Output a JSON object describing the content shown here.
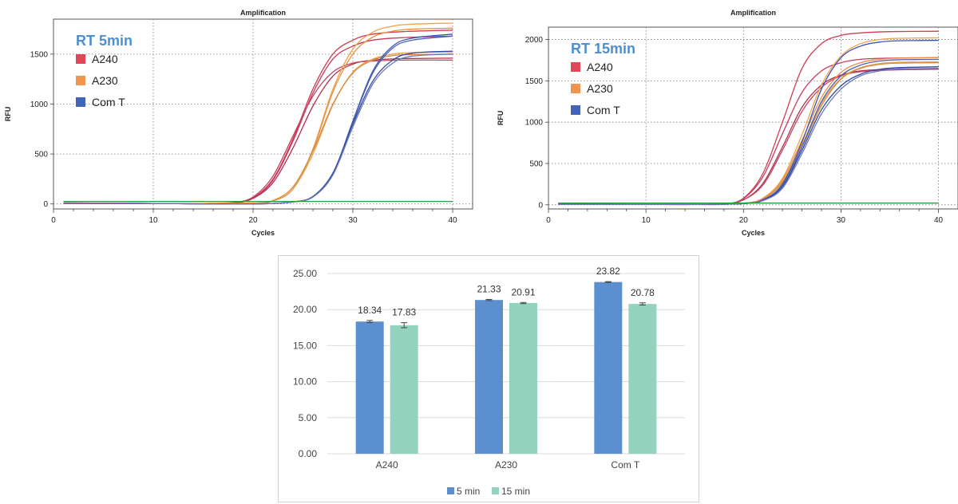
{
  "chart_data": [
    {
      "type": "line",
      "title": "Amplification",
      "annotation": "RT 5min",
      "xlabel": "Cycles",
      "ylabel": "RFU",
      "xlim": [
        0,
        42
      ],
      "ylim": [
        -50,
        1850
      ],
      "xticks": [
        0,
        10,
        20,
        30,
        40
      ],
      "yticks": [
        0,
        500,
        1000,
        1500
      ],
      "grid": true,
      "legend_position": "top-left",
      "legend": [
        {
          "label": "A240",
          "color": "#e04858"
        },
        {
          "label": "A230",
          "color": "#f0954e"
        },
        {
          "label": "Com T",
          "color": "#4464b8"
        }
      ],
      "series": [
        {
          "group": "A240",
          "color": "#d03c50",
          "ct": 24.6,
          "plateau": 1740,
          "x": [
            1,
            5,
            10,
            15,
            18,
            20,
            22,
            24,
            26,
            28,
            30,
            32,
            35,
            40
          ],
          "y": [
            10,
            8,
            5,
            5,
            10,
            60,
            250,
            650,
            1150,
            1500,
            1640,
            1700,
            1725,
            1740
          ]
        },
        {
          "group": "A240",
          "color": "#c83a5c",
          "ct": 24.4,
          "plateau": 1680,
          "x": [
            1,
            5,
            10,
            15,
            18,
            20,
            22,
            24,
            26,
            28,
            30,
            32,
            35,
            40
          ],
          "y": [
            10,
            8,
            5,
            5,
            10,
            60,
            240,
            630,
            1110,
            1450,
            1580,
            1640,
            1665,
            1680
          ]
        },
        {
          "group": "A240",
          "color": "#b03050",
          "ct": 24.2,
          "plateau": 1460,
          "x": [
            1,
            5,
            10,
            15,
            18,
            20,
            22,
            24,
            26,
            28,
            30,
            32,
            35,
            40
          ],
          "y": [
            10,
            8,
            5,
            5,
            10,
            55,
            215,
            560,
            980,
            1280,
            1400,
            1440,
            1455,
            1460
          ]
        },
        {
          "group": "A240",
          "color": "#c04560",
          "ct": 23.8,
          "plateau": 1440,
          "x": [
            1,
            5,
            10,
            15,
            18,
            20,
            22,
            24,
            26,
            28,
            30,
            32,
            35,
            40
          ],
          "y": [
            10,
            8,
            5,
            5,
            15,
            70,
            280,
            680,
            1080,
            1320,
            1410,
            1430,
            1440,
            1440
          ]
        },
        {
          "group": "A230",
          "color": "#f0a050",
          "ct": 27.3,
          "plateau": 1810,
          "x": [
            1,
            5,
            10,
            15,
            20,
            22,
            24,
            26,
            28,
            30,
            32,
            34,
            36,
            40
          ],
          "y": [
            5,
            5,
            5,
            5,
            8,
            30,
            150,
            550,
            1150,
            1550,
            1720,
            1780,
            1800,
            1810
          ]
        },
        {
          "group": "A230",
          "color": "#e89040",
          "ct": 27.2,
          "plateau": 1760,
          "x": [
            1,
            5,
            10,
            15,
            20,
            22,
            24,
            26,
            28,
            30,
            32,
            34,
            36,
            40
          ],
          "y": [
            5,
            5,
            5,
            5,
            8,
            30,
            150,
            540,
            1120,
            1500,
            1670,
            1730,
            1750,
            1760
          ]
        },
        {
          "group": "A230",
          "color": "#e6a458",
          "ct": 27.0,
          "plateau": 1520,
          "x": [
            1,
            5,
            10,
            15,
            20,
            22,
            24,
            26,
            28,
            30,
            32,
            34,
            36,
            40
          ],
          "y": [
            5,
            5,
            5,
            5,
            8,
            30,
            150,
            500,
            990,
            1320,
            1450,
            1500,
            1515,
            1520
          ]
        },
        {
          "group": "A230",
          "color": "#d88a3c",
          "ct": 26.8,
          "plateau": 1500,
          "x": [
            1,
            5,
            10,
            15,
            20,
            22,
            24,
            26,
            28,
            30,
            32,
            34,
            36,
            40
          ],
          "y": [
            5,
            5,
            5,
            5,
            8,
            35,
            170,
            530,
            1000,
            1310,
            1440,
            1485,
            1495,
            1500
          ]
        },
        {
          "group": "Com T",
          "color": "#3c56b0",
          "ct": 30.0,
          "plateau": 1700,
          "x": [
            1,
            5,
            10,
            15,
            20,
            22,
            24,
            26,
            28,
            30,
            32,
            34,
            36,
            40
          ],
          "y": [
            5,
            5,
            5,
            0,
            0,
            5,
            20,
            70,
            300,
            830,
            1330,
            1580,
            1660,
            1700
          ]
        },
        {
          "group": "Com T",
          "color": "#4a60b8",
          "ct": 30.0,
          "plateau": 1680,
          "x": [
            1,
            5,
            10,
            15,
            20,
            22,
            24,
            26,
            28,
            30,
            32,
            34,
            36,
            40
          ],
          "y": [
            5,
            5,
            5,
            0,
            0,
            5,
            20,
            70,
            300,
            820,
            1310,
            1560,
            1640,
            1680
          ]
        },
        {
          "group": "Com T",
          "color": "#2e4aa0",
          "ct": 29.8,
          "plateau": 1530,
          "x": [
            1,
            5,
            10,
            15,
            20,
            22,
            24,
            26,
            28,
            30,
            32,
            34,
            36,
            40
          ],
          "y": [
            5,
            5,
            5,
            0,
            0,
            5,
            20,
            75,
            310,
            800,
            1230,
            1440,
            1510,
            1530
          ]
        },
        {
          "group": "Com T",
          "color": "#6a78c0",
          "ct": 29.9,
          "plateau": 1500,
          "x": [
            1,
            5,
            10,
            15,
            20,
            22,
            24,
            26,
            28,
            30,
            32,
            34,
            36,
            40
          ],
          "y": [
            5,
            5,
            5,
            0,
            0,
            5,
            20,
            70,
            290,
            770,
            1200,
            1410,
            1480,
            1500
          ]
        },
        {
          "group": "NTC",
          "color": "#2e9a3a",
          "x": [
            1,
            40
          ],
          "y": [
            25,
            25
          ]
        }
      ]
    },
    {
      "type": "line",
      "title": "Amplification",
      "annotation": "RT 15min",
      "xlabel": "Cycles",
      "ylabel": "RFU",
      "xlim": [
        0,
        42
      ],
      "ylim": [
        -50,
        2150
      ],
      "xticks": [
        0,
        10,
        20,
        30,
        40
      ],
      "yticks": [
        0,
        500,
        1000,
        1500,
        2000
      ],
      "grid": true,
      "legend_position": "top-left",
      "legend": [
        {
          "label": "A240",
          "color": "#e04858"
        },
        {
          "label": "A230",
          "color": "#f0954e"
        },
        {
          "label": "Com T",
          "color": "#4464b8"
        }
      ],
      "series": [
        {
          "group": "A240",
          "color": "#d03c50",
          "x": [
            1,
            5,
            10,
            15,
            18,
            20,
            22,
            24,
            26,
            28,
            30,
            32,
            35,
            40
          ],
          "y": [
            10,
            8,
            5,
            5,
            10,
            80,
            380,
            1000,
            1650,
            1950,
            2050,
            2080,
            2095,
            2100
          ]
        },
        {
          "group": "A240",
          "color": "#c83a5c",
          "x": [
            1,
            5,
            10,
            15,
            18,
            20,
            22,
            24,
            26,
            28,
            30,
            32,
            35,
            40
          ],
          "y": [
            10,
            8,
            5,
            5,
            10,
            75,
            340,
            860,
            1360,
            1620,
            1720,
            1760,
            1775,
            1780
          ]
        },
        {
          "group": "A240",
          "color": "#b03050",
          "x": [
            1,
            5,
            10,
            15,
            18,
            20,
            22,
            24,
            26,
            28,
            30,
            32,
            35,
            40
          ],
          "y": [
            10,
            8,
            5,
            5,
            10,
            60,
            260,
            700,
            1180,
            1450,
            1570,
            1620,
            1640,
            1650
          ]
        },
        {
          "group": "A240",
          "color": "#c04560",
          "x": [
            1,
            5,
            10,
            15,
            18,
            20,
            22,
            24,
            26,
            28,
            30,
            32,
            35,
            40
          ],
          "y": [
            10,
            8,
            5,
            5,
            10,
            60,
            240,
            660,
            1130,
            1420,
            1560,
            1610,
            1630,
            1640
          ]
        },
        {
          "group": "A230",
          "color": "#f0a050",
          "x": [
            1,
            5,
            10,
            15,
            20,
            22,
            24,
            26,
            28,
            30,
            32,
            34,
            36,
            40
          ],
          "y": [
            5,
            5,
            5,
            5,
            20,
            80,
            320,
            850,
            1450,
            1800,
            1950,
            2000,
            2015,
            2020
          ]
        },
        {
          "group": "A230",
          "color": "#e89040",
          "x": [
            1,
            5,
            10,
            15,
            20,
            22,
            24,
            26,
            28,
            30,
            32,
            34,
            36,
            40
          ],
          "y": [
            5,
            5,
            5,
            5,
            20,
            80,
            300,
            780,
            1300,
            1600,
            1720,
            1760,
            1775,
            1780
          ]
        },
        {
          "group": "A230",
          "color": "#e6a458",
          "x": [
            1,
            5,
            10,
            15,
            20,
            22,
            24,
            26,
            28,
            30,
            32,
            34,
            36,
            40
          ],
          "y": [
            5,
            5,
            5,
            5,
            20,
            75,
            280,
            730,
            1230,
            1530,
            1660,
            1710,
            1725,
            1730
          ]
        },
        {
          "group": "A230",
          "color": "#d88a3c",
          "x": [
            1,
            5,
            10,
            15,
            20,
            22,
            24,
            26,
            28,
            30,
            32,
            34,
            36,
            40
          ],
          "y": [
            5,
            5,
            5,
            5,
            20,
            70,
            270,
            700,
            1200,
            1520,
            1650,
            1700,
            1715,
            1720
          ]
        },
        {
          "group": "Com T",
          "color": "#3c56b0",
          "x": [
            1,
            5,
            10,
            15,
            20,
            22,
            24,
            26,
            28,
            30,
            32,
            34,
            36,
            40
          ],
          "y": [
            5,
            5,
            5,
            5,
            15,
            60,
            250,
            760,
            1400,
            1780,
            1920,
            1970,
            1985,
            1990
          ]
        },
        {
          "group": "Com T",
          "color": "#4a60b8",
          "x": [
            1,
            5,
            10,
            15,
            20,
            22,
            24,
            26,
            28,
            30,
            32,
            34,
            36,
            40
          ],
          "y": [
            5,
            5,
            5,
            5,
            15,
            55,
            230,
            700,
            1250,
            1560,
            1690,
            1740,
            1755,
            1760
          ]
        },
        {
          "group": "Com T",
          "color": "#2e4aa0",
          "x": [
            1,
            5,
            10,
            15,
            20,
            22,
            24,
            26,
            28,
            30,
            32,
            34,
            36,
            40
          ],
          "y": [
            5,
            5,
            5,
            5,
            15,
            55,
            220,
            660,
            1150,
            1440,
            1580,
            1640,
            1660,
            1670
          ]
        },
        {
          "group": "Com T",
          "color": "#6a78c0",
          "x": [
            1,
            5,
            10,
            15,
            20,
            22,
            24,
            26,
            28,
            30,
            32,
            34,
            36,
            40
          ],
          "y": [
            5,
            5,
            5,
            5,
            15,
            50,
            200,
            620,
            1100,
            1400,
            1560,
            1620,
            1645,
            1650
          ]
        },
        {
          "group": "NTC",
          "color": "#2e9a3a",
          "x": [
            1,
            40
          ],
          "y": [
            20,
            20
          ]
        }
      ]
    },
    {
      "type": "bar",
      "title": "",
      "xlabel": "",
      "ylabel": "",
      "categories": [
        "A240",
        "A230",
        "Com T"
      ],
      "ylim": [
        0,
        25
      ],
      "yticks": [
        "0.00",
        "5.00",
        "10.00",
        "15.00",
        "20.00",
        "25.00"
      ],
      "grid": true,
      "legend_position": "bottom",
      "series": [
        {
          "name": "5 min",
          "color": "#5b8fcf",
          "values": [
            18.34,
            21.33,
            23.82
          ],
          "errors": [
            0.15,
            0.08,
            0.06
          ],
          "labels": [
            "18.34",
            "21.33",
            "23.82"
          ]
        },
        {
          "name": "15 min",
          "color": "#93d3bd",
          "values": [
            17.83,
            20.91,
            20.78
          ],
          "errors": [
            0.35,
            0.08,
            0.15
          ],
          "labels": [
            "17.83",
            "20.91",
            "20.78"
          ]
        }
      ]
    }
  ]
}
